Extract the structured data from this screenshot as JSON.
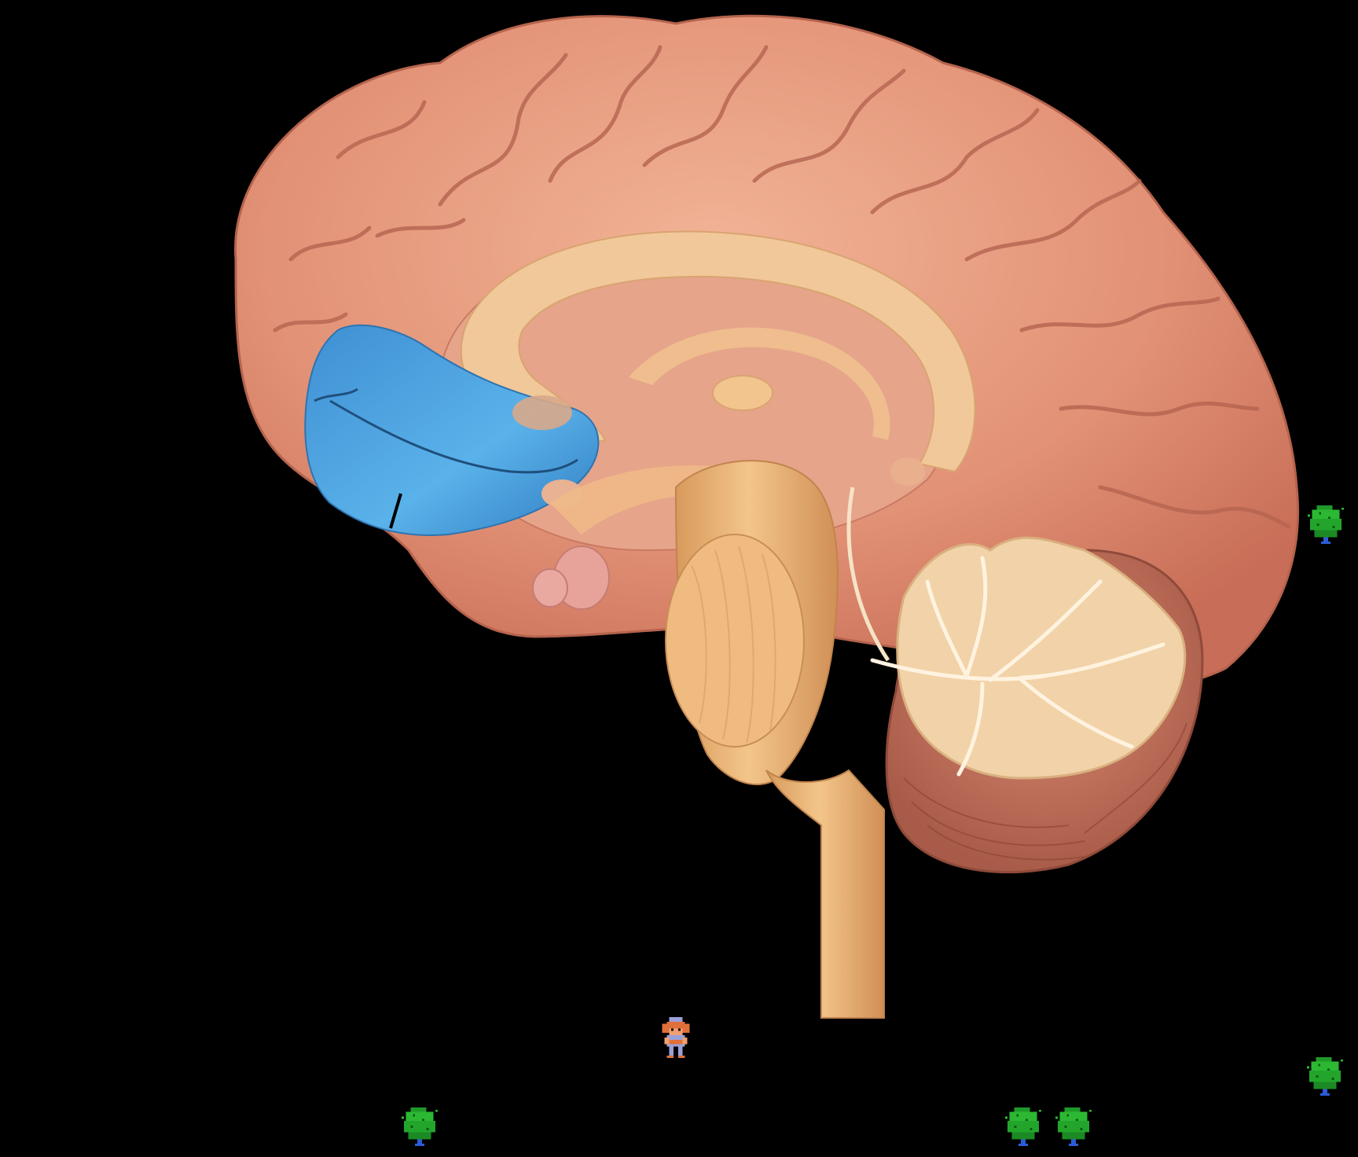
{
  "scene": {
    "background_color": "#000000",
    "subject": "brain-midsagittal",
    "highlighted_region_color": "#4aa3e0",
    "cortex_color": "#e39a7e",
    "white_matter_color": "#f1c28e"
  },
  "sprites": {
    "player": {
      "icon": "pixel-hero-icon"
    },
    "bushes": [
      {
        "icon": "green-bush-icon"
      },
      {
        "icon": "green-bush-icon"
      },
      {
        "icon": "green-bush-icon"
      },
      {
        "icon": "green-bush-icon"
      },
      {
        "icon": "green-bush-icon"
      }
    ]
  }
}
